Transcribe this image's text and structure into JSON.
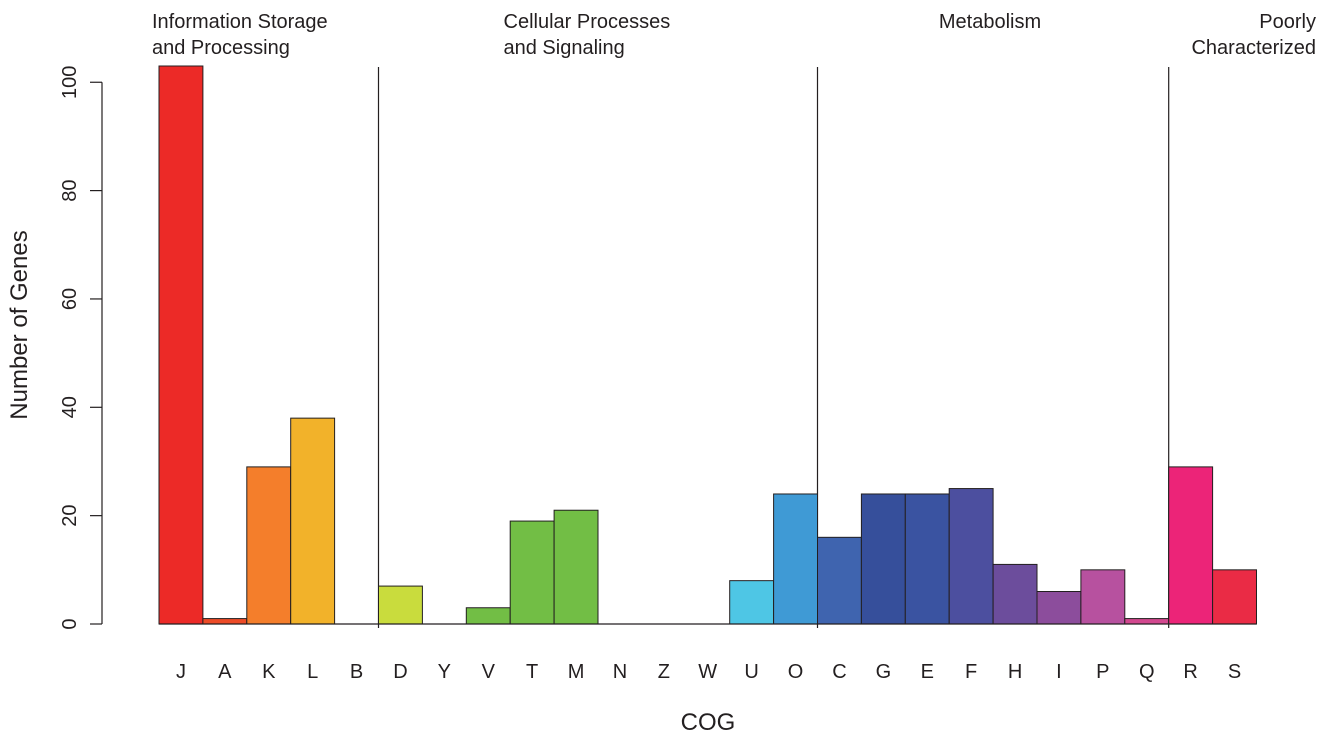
{
  "chart_data": {
    "type": "bar",
    "xlabel": "COG",
    "ylabel": "Number of Genes",
    "ylim": [
      0,
      103
    ],
    "yticks": [
      "0",
      "20",
      "40",
      "60",
      "80",
      "100"
    ],
    "grid": false,
    "legend": "none",
    "categories": [
      "J",
      "A",
      "K",
      "L",
      "B",
      "D",
      "Y",
      "V",
      "T",
      "M",
      "N",
      "Z",
      "W",
      "U",
      "O",
      "C",
      "G",
      "E",
      "F",
      "H",
      "I",
      "P",
      "Q",
      "R",
      "S"
    ],
    "values": [
      103,
      1,
      29,
      38,
      0,
      7,
      0,
      3,
      19,
      21,
      0,
      0,
      0,
      8,
      24,
      16,
      24,
      24,
      25,
      11,
      6,
      10,
      1,
      29,
      10
    ],
    "colors": [
      "#ec2a27",
      "#ed4b27",
      "#f47e2b",
      "#f2b22a",
      "#f2b22a",
      "#c9dc3d",
      "#9acb3b",
      "#72be45",
      "#72be45",
      "#72be45",
      "#5fbe5a",
      "#4cbf8f",
      "#4cc5d8",
      "#4ec6e5",
      "#3f9ad5",
      "#3f64af",
      "#364f9b",
      "#3a53a1",
      "#4c4f9f",
      "#6c4d9c",
      "#8c4d9c",
      "#b7519f",
      "#d2488f",
      "#ec2478",
      "#ea2b45"
    ],
    "groups": [
      {
        "label_lines": [
          "Information Storage",
          " and Processing"
        ],
        "from": "J",
        "to": "B",
        "align": "start"
      },
      {
        "label_lines": [
          "Cellular Processes",
          "and Signaling"
        ],
        "from": "D",
        "to": "O",
        "align": "start"
      },
      {
        "label_lines": [
          "Metabolism"
        ],
        "from": "C",
        "to": "Q",
        "align": "middle"
      },
      {
        "label_lines": [
          "Poorly",
          "Characterized"
        ],
        "from": "R",
        "to": "S",
        "align": "end"
      }
    ],
    "dividers_before": [
      "D",
      "C",
      "R"
    ]
  }
}
